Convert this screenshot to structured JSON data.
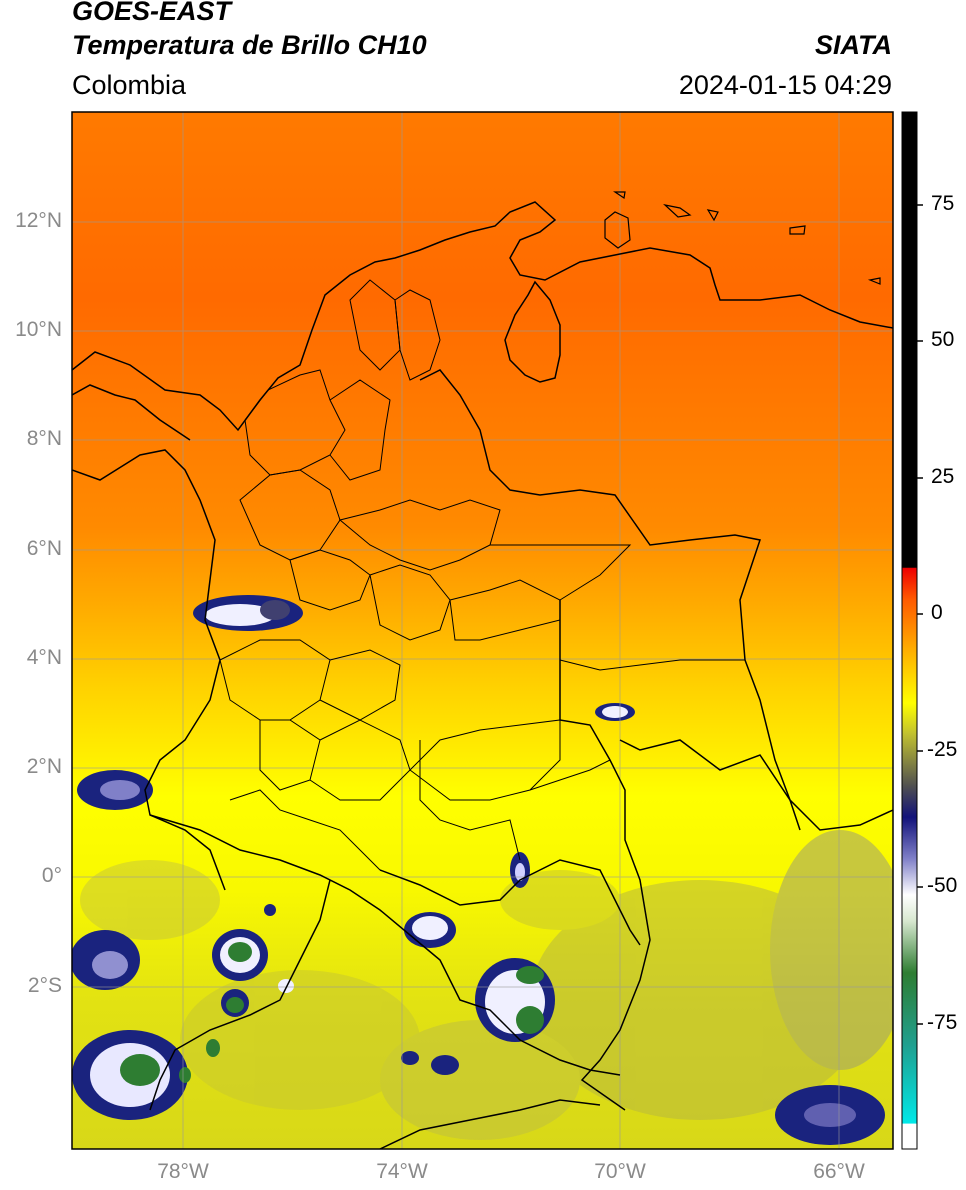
{
  "header": {
    "satellite": "GOES-EAST",
    "product": "Temperatura de Brillo CH10",
    "region": "Colombia",
    "source": "SIATA",
    "datetime": "2024-01-15 04:29"
  },
  "map": {
    "lat_labels": [
      "12°N",
      "10°N",
      "8°N",
      "6°N",
      "4°N",
      "2°N",
      "0°",
      "2°S"
    ],
    "lon_labels": [
      "78°W",
      "74°W",
      "70°W",
      "66°W"
    ],
    "colors": {
      "warm": "#ff6a00",
      "mid": "#ffa000",
      "yellow": "#ffff00",
      "olive": "#b8b820",
      "gray": "#9a9a7a",
      "navy": "#1a237e",
      "cloud_white": "#f2f2ff",
      "green": "#2e7d32"
    }
  },
  "colorbar": {
    "ticks": [
      "75",
      "50",
      "25",
      "0",
      "-25",
      "-50",
      "-75"
    ],
    "colors": [
      "#00e0e0",
      "#1a9a7a",
      "#2e7d32",
      "#e8f0e8",
      "#ffffff",
      "#6060c0",
      "#10107a",
      "#555555",
      "#c8c820",
      "#ffff00",
      "#ffa000",
      "#ff5000",
      "#ee0000",
      "#000000"
    ]
  }
}
